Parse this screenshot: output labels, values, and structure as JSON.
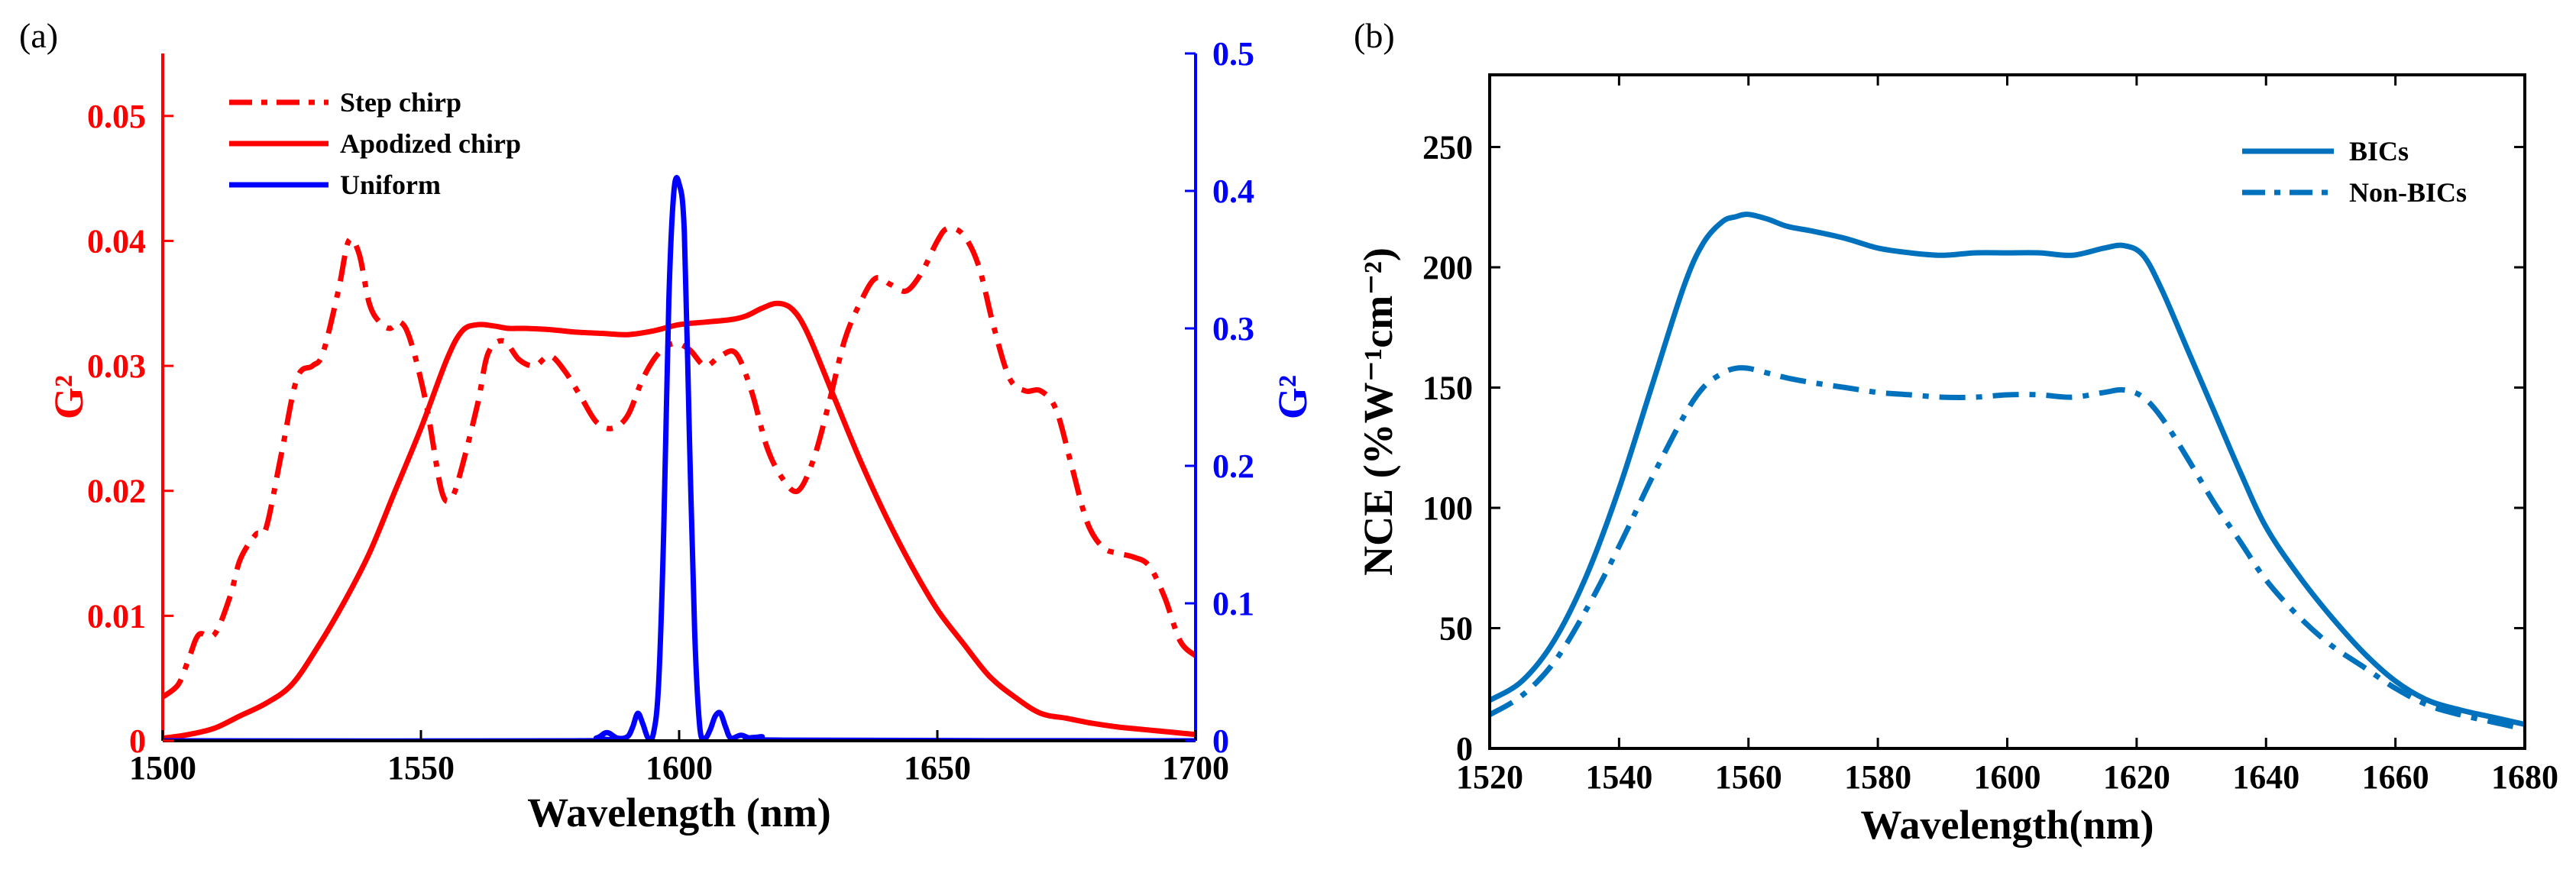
{
  "chart_data": [
    {
      "panel_label": "(a)",
      "type": "line",
      "xlabel": "Wavelength (nm)",
      "ylabel_left": "G²",
      "ylabel_right": "G²",
      "xlim": [
        1500,
        1700
      ],
      "ylim_left": [
        0,
        0.055
      ],
      "ylim_right": [
        0,
        0.5
      ],
      "xticks": [
        1500,
        1550,
        1600,
        1650,
        1700
      ],
      "yticks_left": [
        0,
        0.01,
        0.02,
        0.03,
        0.04,
        0.05
      ],
      "yticks_right": [
        0,
        0.1,
        0.2,
        0.3,
        0.4,
        0.5
      ],
      "ytick_labels_left": [
        "0",
        "0.01",
        "0.02",
        "0.03",
        "0.04",
        "0.05"
      ],
      "ytick_labels_right": [
        "0",
        "0.1",
        "0.2",
        "0.3",
        "0.4",
        "0.5"
      ],
      "legend_position": "top-left",
      "colors": {
        "left_axis": "#ff0000",
        "right_axis": "#0000ff",
        "frame": "#000000"
      },
      "series": [
        {
          "name": "Step chirp",
          "axis": "left",
          "style": "dashdot",
          "color": "#ff0000",
          "x": [
            1500,
            1503,
            1505,
            1507,
            1510,
            1513,
            1515,
            1518,
            1520,
            1523,
            1526,
            1529,
            1531,
            1534,
            1536,
            1538,
            1540,
            1542,
            1544,
            1546,
            1548,
            1551,
            1554,
            1556,
            1558,
            1561,
            1563,
            1566,
            1569,
            1572,
            1575,
            1578,
            1581,
            1584,
            1587,
            1590,
            1593,
            1596,
            1599,
            1602,
            1605,
            1608,
            1611,
            1614,
            1617,
            1620,
            1623,
            1626,
            1629,
            1632,
            1635,
            1638,
            1641,
            1644,
            1647,
            1650,
            1652,
            1655,
            1658,
            1661,
            1664,
            1667,
            1670,
            1673,
            1676,
            1679,
            1682,
            1685,
            1688,
            1691,
            1694,
            1697,
            1700
          ],
          "y": [
            0.0035,
            0.0045,
            0.0065,
            0.0085,
            0.0085,
            0.0115,
            0.0145,
            0.0165,
            0.017,
            0.023,
            0.029,
            0.03,
            0.031,
            0.036,
            0.04,
            0.039,
            0.035,
            0.0335,
            0.033,
            0.0335,
            0.032,
            0.027,
            0.02,
            0.0195,
            0.022,
            0.027,
            0.031,
            0.032,
            0.0305,
            0.03,
            0.0308,
            0.0295,
            0.0275,
            0.0255,
            0.025,
            0.026,
            0.029,
            0.031,
            0.0318,
            0.0313,
            0.03,
            0.0308,
            0.031,
            0.028,
            0.0235,
            0.021,
            0.02,
            0.0225,
            0.027,
            0.032,
            0.035,
            0.037,
            0.0365,
            0.036,
            0.0375,
            0.04,
            0.041,
            0.0405,
            0.038,
            0.033,
            0.029,
            0.028,
            0.028,
            0.0265,
            0.022,
            0.0175,
            0.0155,
            0.015,
            0.0147,
            0.014,
            0.0115,
            0.008,
            0.0068
          ]
        },
        {
          "name": "Apodized chirp",
          "axis": "left",
          "style": "solid",
          "color": "#ff0000",
          "x": [
            1500,
            1505,
            1510,
            1515,
            1520,
            1525,
            1530,
            1535,
            1540,
            1545,
            1550,
            1555,
            1558,
            1561,
            1564,
            1567,
            1570,
            1575,
            1580,
            1585,
            1590,
            1595,
            1600,
            1605,
            1610,
            1613,
            1616,
            1619,
            1622,
            1625,
            1630,
            1635,
            1640,
            1645,
            1650,
            1655,
            1660,
            1665,
            1670,
            1675,
            1680,
            1685,
            1690,
            1695,
            1700
          ],
          "y": [
            0.0002,
            0.0005,
            0.001,
            0.002,
            0.003,
            0.0045,
            0.0075,
            0.011,
            0.015,
            0.02,
            0.025,
            0.0305,
            0.0328,
            0.0333,
            0.0332,
            0.033,
            0.033,
            0.0329,
            0.0327,
            0.0326,
            0.0325,
            0.0328,
            0.0333,
            0.0335,
            0.0337,
            0.034,
            0.0346,
            0.035,
            0.0345,
            0.0325,
            0.0275,
            0.0225,
            0.018,
            0.014,
            0.0105,
            0.0078,
            0.0052,
            0.0035,
            0.0022,
            0.0018,
            0.0014,
            0.0011,
            0.0009,
            0.0007,
            0.0005
          ]
        },
        {
          "name": "Uniform",
          "axis": "right",
          "style": "solid",
          "color": "#0000ff",
          "x": [
            1500,
            1580,
            1584,
            1586,
            1588,
            1590,
            1591,
            1592,
            1593,
            1594,
            1595,
            1596,
            1597,
            1598,
            1599,
            1600,
            1601,
            1602,
            1603,
            1604,
            1605,
            1606,
            1607,
            1608,
            1609,
            1610,
            1612,
            1614,
            1616,
            1620,
            1700
          ],
          "y": [
            0.0,
            0.0,
            0.002,
            0.006,
            0.002,
            0.003,
            0.01,
            0.02,
            0.012,
            0.002,
            0.005,
            0.04,
            0.15,
            0.32,
            0.4,
            0.405,
            0.37,
            0.22,
            0.08,
            0.01,
            0.002,
            0.008,
            0.018,
            0.02,
            0.01,
            0.002,
            0.004,
            0.0015,
            0.003,
            0.0005,
            0.0
          ]
        }
      ]
    },
    {
      "panel_label": "(b)",
      "type": "line",
      "xlabel": "Wavelength(nm)",
      "ylabel": "NCE (%W⁻¹cm⁻²)",
      "xlim": [
        1520,
        1680
      ],
      "ylim": [
        0,
        280
      ],
      "xticks": [
        1520,
        1540,
        1560,
        1580,
        1600,
        1620,
        1640,
        1660,
        1680
      ],
      "yticks": [
        0,
        50,
        100,
        150,
        200,
        250
      ],
      "legend_position": "top-right",
      "colors": {
        "series": "#0072bd",
        "frame": "#000000"
      },
      "series": [
        {
          "name": "BICs",
          "style": "solid",
          "color": "#0072bd",
          "x": [
            1520,
            1525,
            1530,
            1535,
            1540,
            1545,
            1550,
            1553,
            1556,
            1558,
            1560,
            1563,
            1566,
            1570,
            1575,
            1580,
            1585,
            1590,
            1595,
            1600,
            1605,
            1610,
            1615,
            1618,
            1621,
            1624,
            1628,
            1632,
            1636,
            1640,
            1645,
            1650,
            1655,
            1660,
            1665,
            1670,
            1675,
            1680
          ],
          "y": [
            20,
            28,
            45,
            72,
            108,
            150,
            192,
            210,
            219,
            221,
            222,
            220,
            217,
            215,
            212,
            208,
            206,
            205,
            206,
            206,
            206,
            205,
            208,
            209,
            205,
            190,
            165,
            140,
            115,
            92,
            72,
            55,
            40,
            28,
            20,
            16,
            13,
            10
          ]
        },
        {
          "name": "Non-BICs",
          "style": "dashdot",
          "color": "#0072bd",
          "x": [
            1520,
            1525,
            1530,
            1535,
            1540,
            1545,
            1550,
            1553,
            1556,
            1558,
            1560,
            1563,
            1566,
            1570,
            1575,
            1580,
            1585,
            1590,
            1595,
            1600,
            1605,
            1610,
            1615,
            1618,
            1621,
            1624,
            1628,
            1632,
            1636,
            1640,
            1645,
            1650,
            1655,
            1660,
            1665,
            1670,
            1675,
            1680
          ],
          "y": [
            14,
            22,
            36,
            58,
            84,
            112,
            138,
            150,
            156,
            158,
            158,
            156,
            154,
            152,
            150,
            148,
            147,
            146,
            146,
            147,
            147,
            146,
            148,
            149,
            146,
            137,
            120,
            102,
            86,
            70,
            55,
            43,
            34,
            25,
            18,
            14,
            11,
            8
          ]
        }
      ]
    }
  ]
}
